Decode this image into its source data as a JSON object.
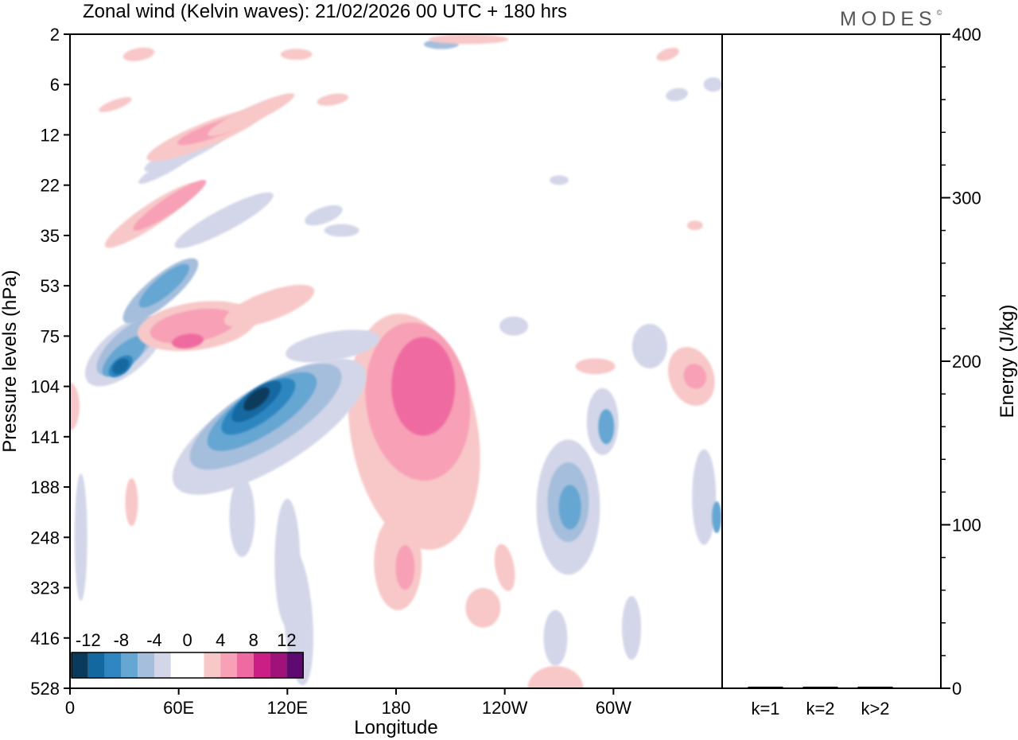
{
  "brand": "MODES",
  "brand_mark": "©",
  "chart_data": [
    {
      "type": "heatmap",
      "title": "Zonal wind (Kelvin waves):  21/02/2026  00 UTC  + 180 hrs",
      "xlabel": "Longitude",
      "ylabel": "Pressure levels (hPa)",
      "x_ticks": [
        "0",
        "60E",
        "120E",
        "180",
        "120W",
        "60W"
      ],
      "x_tick_values": [
        0,
        60,
        120,
        180,
        240,
        300
      ],
      "x_range": [
        0,
        360
      ],
      "y_ticks": [
        "2",
        "6",
        "12",
        "22",
        "35",
        "53",
        "75",
        "104",
        "141",
        "188",
        "248",
        "323",
        "416",
        "528"
      ],
      "y_scale": "categorical levels, 2 hPa at top, 528 hPa at bottom",
      "colorbar": {
        "labels": [
          "-12",
          "-8",
          "-4",
          "0",
          "4",
          "8",
          "12"
        ],
        "colors": [
          "#0b3b5c",
          "#1468a0",
          "#2f86c0",
          "#66a6d2",
          "#a5bedc",
          "#d2d6e8",
          "#ffffff",
          "#ffffff",
          "#f8c8c8",
          "#f7a0b6",
          "#ef6aa0",
          "#cc1f86",
          "#a0127a",
          "#5f0a70"
        ]
      },
      "color_levels": {
        "neg_strong": "#0b3b5c",
        "neg_3": "#1468a0",
        "neg_2": "#2f86c0",
        "neg_1": "#66a6d2",
        "neg_0b": "#a5bedc",
        "neg_0": "#d2d6e8",
        "pos_0": "#f8c8c8",
        "pos_1": "#f7a0b6",
        "pos_2": "#ef6aa0"
      },
      "features": [
        {
          "lon": 195,
          "level": "141",
          "sign": "easterly+",
          "peak": 10
        },
        {
          "lon": 105,
          "level": "104",
          "sign": "negative",
          "peak": -12
        },
        {
          "lon": 28,
          "level": "104",
          "sign": "negative",
          "peak": -10
        },
        {
          "lon": 65,
          "level": "75",
          "sign": "positive",
          "peak": 9
        },
        {
          "lon": 275,
          "level": "188",
          "sign": "negative",
          "peak": -6
        },
        {
          "lon": 343,
          "level": "104",
          "sign": "positive",
          "peak": 6
        },
        {
          "lon": 60,
          "level": "35",
          "sign": "positive",
          "peak": 6
        }
      ]
    },
    {
      "type": "bar",
      "ylabel": "Energy (J/kg)",
      "categories": [
        "k=1",
        "k=2",
        "k>2"
      ],
      "values": [
        0.5,
        0.5,
        0.5
      ],
      "ylim": [
        0,
        400
      ],
      "y_ticks": [
        "0",
        "100",
        "200",
        "300",
        "400"
      ],
      "y_tick_values": [
        0,
        100,
        200,
        300,
        400
      ]
    }
  ]
}
